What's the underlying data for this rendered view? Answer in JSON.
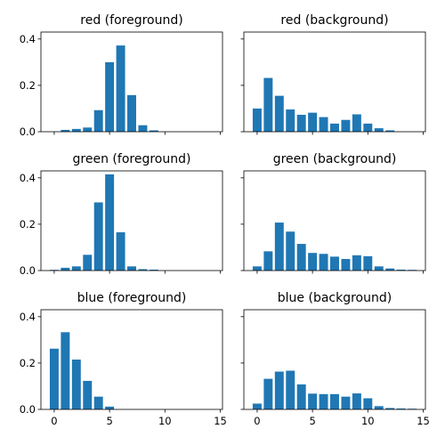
{
  "chart_data": [
    {
      "type": "bar",
      "title": "red (foreground)",
      "x": [
        0,
        1,
        2,
        3,
        4,
        5,
        6,
        7,
        8,
        9,
        10,
        11,
        12,
        13,
        14
      ],
      "values": [
        0.0,
        0.008,
        0.012,
        0.018,
        0.093,
        0.3,
        0.372,
        0.158,
        0.028,
        0.006,
        0.0,
        0.0,
        0.0,
        0.0,
        0.0
      ],
      "xlim": [
        -1.2,
        15.2
      ],
      "ylim": [
        0,
        0.43
      ],
      "xticks": [
        0,
        5,
        10,
        15
      ],
      "yticks": [
        0.0,
        0.2,
        0.4
      ],
      "ytick_labels": [
        "0.0",
        "0.2",
        "0.4"
      ],
      "xtick_labels": [],
      "color": "#1f77b4"
    },
    {
      "type": "bar",
      "title": "red (background)",
      "x": [
        0,
        1,
        2,
        3,
        4,
        5,
        6,
        7,
        8,
        9,
        10,
        11,
        12,
        13,
        14
      ],
      "values": [
        0.1,
        0.232,
        0.155,
        0.096,
        0.073,
        0.082,
        0.063,
        0.035,
        0.051,
        0.075,
        0.035,
        0.015,
        0.006,
        0.0,
        0.0
      ],
      "xlim": [
        -1.2,
        15.2
      ],
      "ylim": [
        0,
        0.43
      ],
      "xticks": [
        0,
        5,
        10,
        15
      ],
      "yticks": [
        0.0,
        0.2,
        0.4
      ],
      "ytick_labels": [],
      "xtick_labels": [],
      "color": "#1f77b4"
    },
    {
      "type": "bar",
      "title": "green (foreground)",
      "x": [
        0,
        1,
        2,
        3,
        4,
        5,
        6,
        7,
        8,
        9,
        10,
        11,
        12,
        13,
        14
      ],
      "values": [
        0.003,
        0.012,
        0.018,
        0.068,
        0.294,
        0.415,
        0.165,
        0.018,
        0.006,
        0.004,
        0.0,
        0.0,
        0.0,
        0.0,
        0.0
      ],
      "xlim": [
        -1.2,
        15.2
      ],
      "ylim": [
        0,
        0.43
      ],
      "xticks": [
        0,
        5,
        10,
        15
      ],
      "yticks": [
        0.0,
        0.2,
        0.4
      ],
      "ytick_labels": [
        "0.0",
        "0.2",
        "0.4"
      ],
      "xtick_labels": [],
      "color": "#1f77b4"
    },
    {
      "type": "bar",
      "title": "green (background)",
      "x": [
        0,
        1,
        2,
        3,
        4,
        5,
        6,
        7,
        8,
        9,
        10,
        11,
        12,
        13,
        14
      ],
      "values": [
        0.018,
        0.083,
        0.207,
        0.168,
        0.115,
        0.076,
        0.072,
        0.06,
        0.05,
        0.066,
        0.062,
        0.018,
        0.009,
        0.004,
        0.003
      ],
      "xlim": [
        -1.2,
        15.2
      ],
      "ylim": [
        0,
        0.43
      ],
      "xticks": [
        0,
        5,
        10,
        15
      ],
      "yticks": [
        0.0,
        0.2,
        0.4
      ],
      "ytick_labels": [],
      "xtick_labels": [],
      "color": "#1f77b4"
    },
    {
      "type": "bar",
      "title": "blue (foreground)",
      "x": [
        0,
        1,
        2,
        3,
        4,
        5,
        6,
        7,
        8,
        9,
        10,
        11,
        12,
        13,
        14
      ],
      "values": [
        0.262,
        0.333,
        0.215,
        0.123,
        0.055,
        0.012,
        0.0,
        0.0,
        0.0,
        0.0,
        0.0,
        0.0,
        0.0,
        0.0,
        0.0
      ],
      "xlim": [
        -1.2,
        15.2
      ],
      "ylim": [
        0,
        0.43
      ],
      "xticks": [
        0,
        5,
        10,
        15
      ],
      "yticks": [
        0.0,
        0.2,
        0.4
      ],
      "ytick_labels": [
        "0.0",
        "0.2",
        "0.4"
      ],
      "xtick_labels": [
        "0",
        "5",
        "10",
        "15"
      ],
      "color": "#1f77b4"
    },
    {
      "type": "bar",
      "title": "blue (background)",
      "x": [
        0,
        1,
        2,
        3,
        4,
        5,
        6,
        7,
        8,
        9,
        10,
        11,
        12,
        13,
        14
      ],
      "values": [
        0.025,
        0.132,
        0.163,
        0.167,
        0.108,
        0.068,
        0.066,
        0.066,
        0.055,
        0.069,
        0.048,
        0.014,
        0.006,
        0.004,
        0.003
      ],
      "xlim": [
        -1.2,
        15.2
      ],
      "ylim": [
        0,
        0.43
      ],
      "xticks": [
        0,
        5,
        10,
        15
      ],
      "yticks": [
        0.0,
        0.2,
        0.4
      ],
      "ytick_labels": [],
      "xtick_labels": [
        "0",
        "5",
        "10",
        "15"
      ],
      "color": "#1f77b4"
    }
  ]
}
